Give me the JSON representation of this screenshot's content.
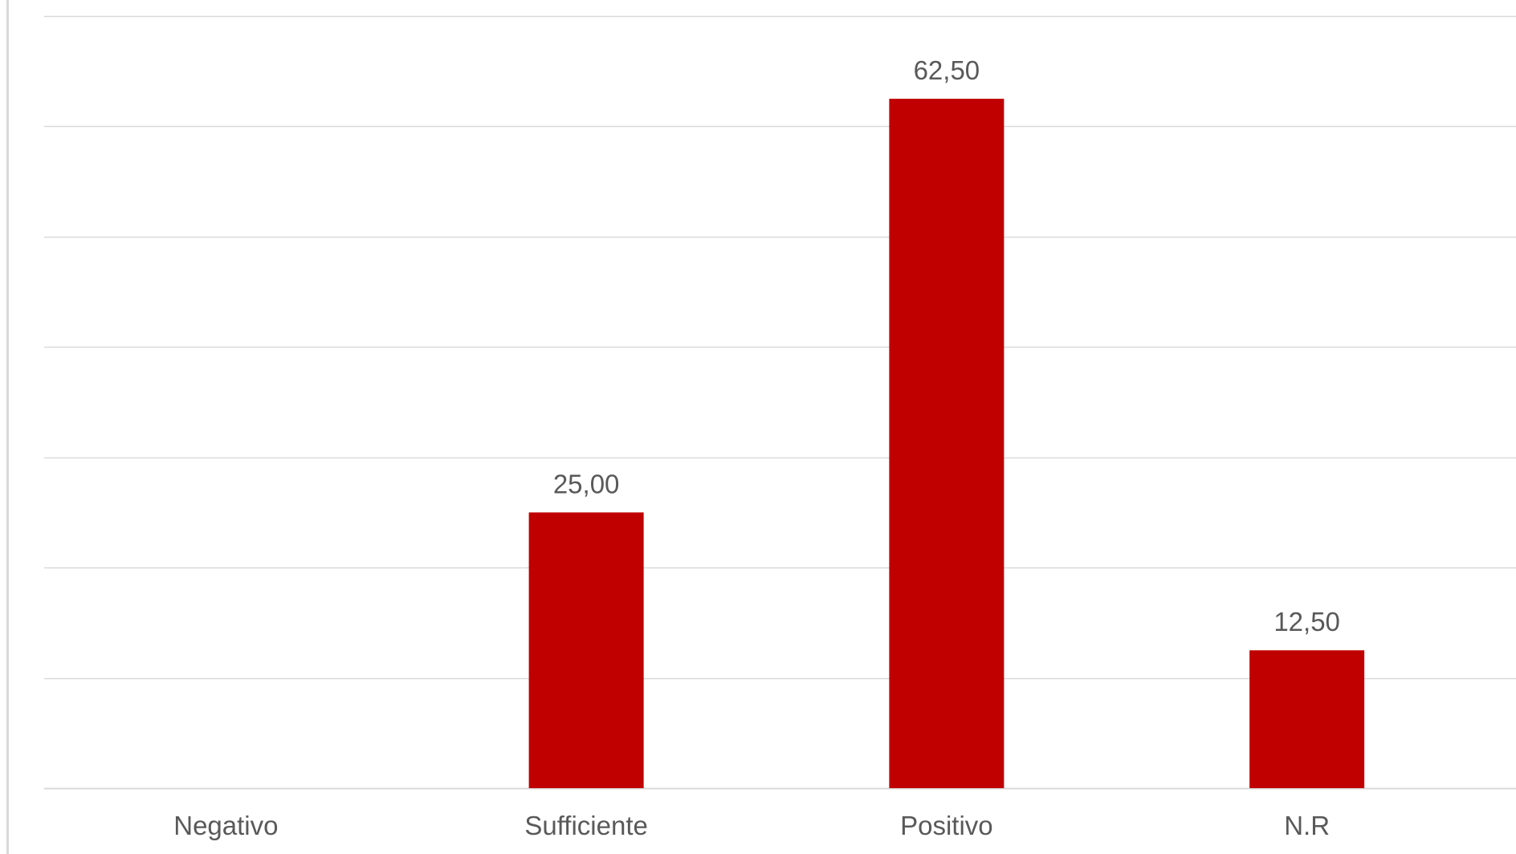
{
  "chart_data": {
    "type": "bar",
    "categories": [
      "Negativo",
      "Sufficiente",
      "Positivo",
      "N.R"
    ],
    "values": [
      0,
      25.0,
      62.5,
      12.5
    ],
    "data_labels": [
      "",
      "25,00",
      "62,50",
      "12,50"
    ],
    "ylim": [
      0,
      70
    ],
    "grid": true,
    "legend": "none",
    "title": "",
    "xlabel": "",
    "ylabel": ""
  },
  "colors": {
    "bar": "#c00000",
    "grid": "#d9d9d9",
    "text": "#595959"
  }
}
